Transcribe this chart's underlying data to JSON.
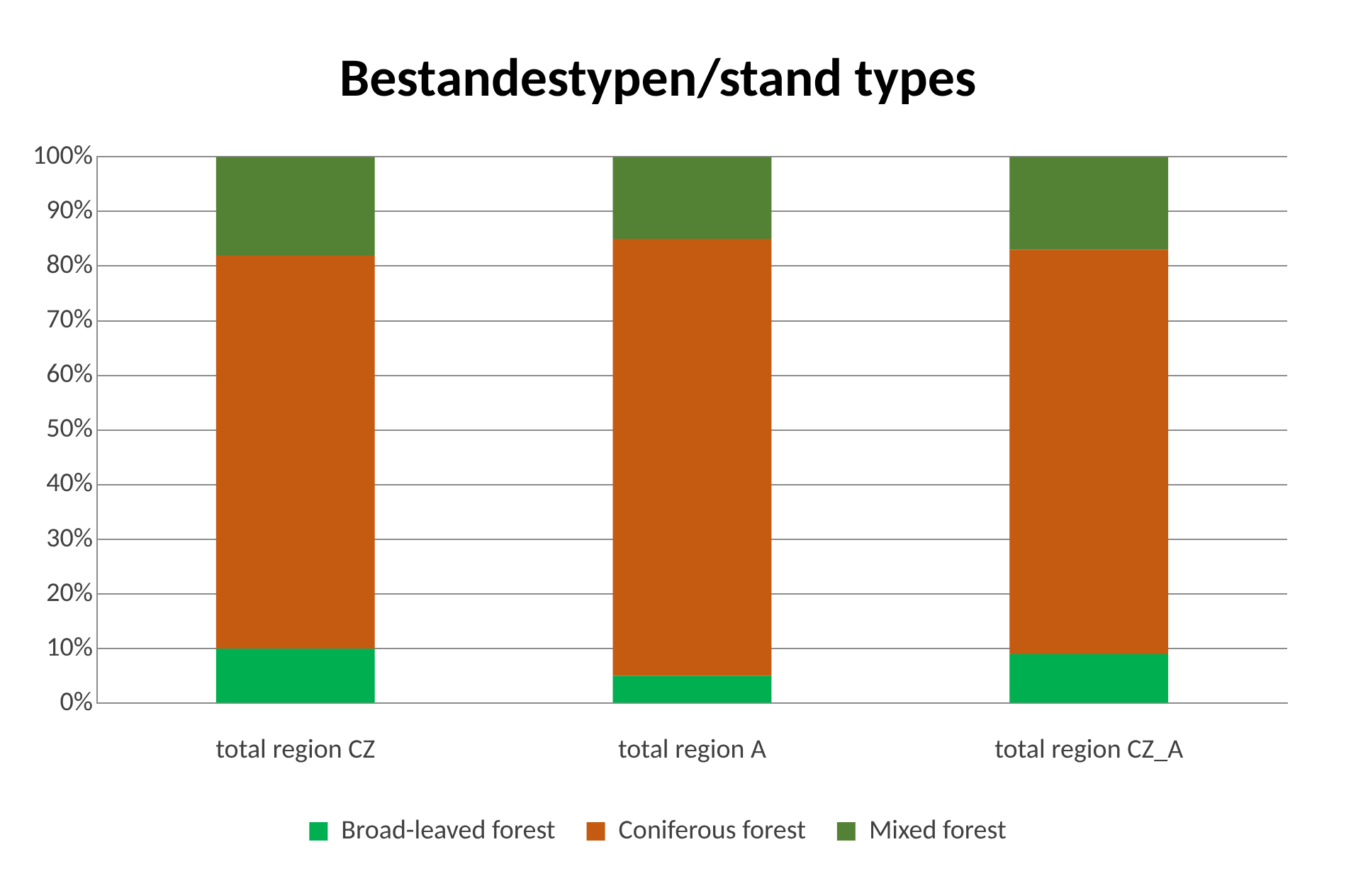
{
  "chart_data": {
    "type": "bar",
    "title": "Bestandestypen/stand types",
    "stacked": true,
    "categories": [
      "total region CZ",
      "total region A",
      "total region CZ_A"
    ],
    "series": [
      {
        "name": "Broad-leaved forest",
        "color": "#00b050",
        "values": [
          10,
          5,
          9
        ]
      },
      {
        "name": "Coniferous forest",
        "color": "#c55a11",
        "values": [
          72,
          80,
          74
        ]
      },
      {
        "name": "Mixed forest",
        "color": "#548235",
        "values": [
          18,
          15,
          17
        ]
      }
    ],
    "ylim": [
      0,
      100
    ],
    "yticks": [
      {
        "value": 0,
        "label": "0%"
      },
      {
        "value": 10,
        "label": "10%"
      },
      {
        "value": 20,
        "label": "20%"
      },
      {
        "value": 30,
        "label": "30%"
      },
      {
        "value": 40,
        "label": "40%"
      },
      {
        "value": 50,
        "label": "50%"
      },
      {
        "value": 60,
        "label": "60%"
      },
      {
        "value": 70,
        "label": "70%"
      },
      {
        "value": 80,
        "label": "80%"
      },
      {
        "value": 90,
        "label": "90%"
      },
      {
        "value": 100,
        "label": "100%"
      }
    ],
    "grid": "y",
    "legend": "bottom"
  }
}
